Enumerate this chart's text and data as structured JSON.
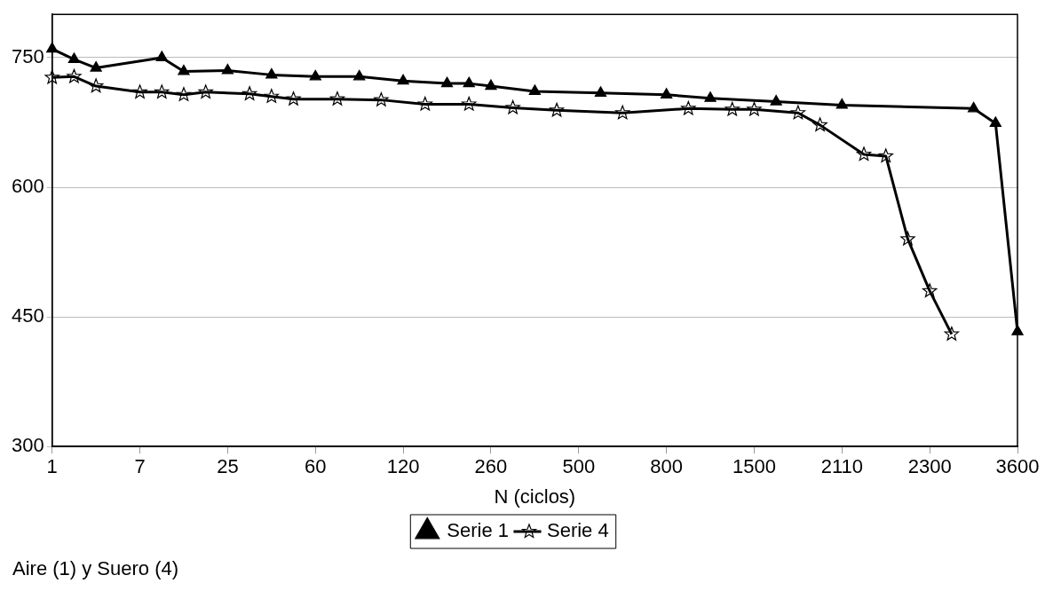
{
  "chart_data": {
    "type": "line",
    "xlabel": "N (ciclos)",
    "categories": [
      "1",
      null,
      null,
      null,
      "7",
      null,
      null,
      null,
      "25",
      null,
      null,
      null,
      "60",
      null,
      null,
      null,
      "120",
      null,
      null,
      null,
      "260",
      null,
      null,
      null,
      "500",
      null,
      null,
      null,
      "800",
      null,
      null,
      null,
      "1500",
      null,
      null,
      null,
      "2110",
      null,
      null,
      null,
      "2300",
      null,
      null,
      null,
      "3600"
    ],
    "series": [
      {
        "name": "Serie 1",
        "color": "#000000",
        "marker": "triangle",
        "values": [
          760,
          748,
          738,
          null,
          null,
          750,
          734,
          null,
          735,
          null,
          730,
          null,
          728,
          null,
          728,
          null,
          723,
          null,
          720,
          720,
          717,
          null,
          711,
          null,
          null,
          709,
          null,
          null,
          707,
          null,
          703,
          null,
          null,
          699,
          null,
          null,
          695,
          null,
          null,
          null,
          null,
          null,
          691,
          674,
          433
        ]
      },
      {
        "name": "Serie 4",
        "color": "#000000",
        "marker": "star",
        "values": [
          727,
          728,
          717,
          null,
          710,
          710,
          707,
          710,
          null,
          708,
          705,
          702,
          null,
          702,
          null,
          701,
          null,
          696,
          null,
          696,
          null,
          692,
          null,
          689,
          null,
          null,
          686,
          null,
          null,
          691,
          null,
          690,
          690,
          null,
          686,
          672,
          null,
          638,
          636,
          540,
          480,
          430,
          null,
          null,
          null
        ]
      }
    ],
    "ylim": [
      300,
      800
    ],
    "yticks": [
      300,
      450,
      600,
      750
    ],
    "grid": "y",
    "legend": "bottom",
    "line_style": "solid",
    "annotations": [
      "Aire (1) y Suero (4)"
    ]
  }
}
